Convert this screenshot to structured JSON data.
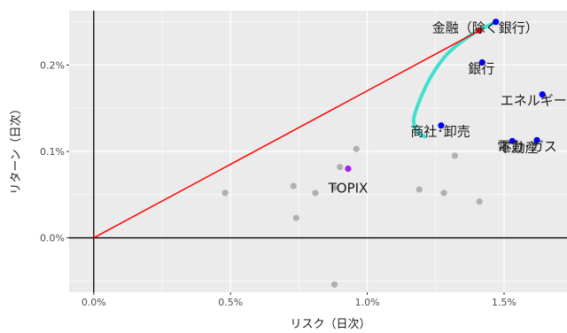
{
  "chart_data": {
    "type": "scatter",
    "xlabel": "リスク（日次）",
    "ylabel": "リターン（日次）",
    "xlim": [
      -0.0009,
      0.0173
    ],
    "ylim": [
      -0.00063,
      0.00263
    ],
    "x_ticks": [
      {
        "value": 0.0,
        "label": "0.0%"
      },
      {
        "value": 0.005,
        "label": "0.5%"
      },
      {
        "value": 0.01,
        "label": "1.0%"
      },
      {
        "value": 0.015,
        "label": "1.5%"
      }
    ],
    "y_ticks": [
      {
        "value": 0.0,
        "label": "0.0%"
      },
      {
        "value": 0.001,
        "label": "0.1%"
      },
      {
        "value": 0.002,
        "label": "0.2%"
      }
    ],
    "grid": true,
    "colors": {
      "panel": "#ebebeb",
      "grid": "#ffffff",
      "axes_lines": "#000000",
      "others": "#b0b0b0",
      "sectors": "#0000ff",
      "topix": "#a020f0",
      "tangent_line": "#ff0000",
      "tangent_point": "#ff0000",
      "frontier": "#40e0d0"
    },
    "gray_points": [
      {
        "x": 0.0048,
        "y": 0.00052
      },
      {
        "x": 0.0073,
        "y": 0.0006
      },
      {
        "x": 0.0074,
        "y": 0.00023
      },
      {
        "x": 0.0081,
        "y": 0.00052
      },
      {
        "x": 0.0088,
        "y": 0.00058
      },
      {
        "x": 0.009,
        "y": 0.00082
      },
      {
        "x": 0.0096,
        "y": 0.00103
      },
      {
        "x": 0.0088,
        "y": -0.00054
      },
      {
        "x": 0.0119,
        "y": 0.00056
      },
      {
        "x": 0.0128,
        "y": 0.00052
      },
      {
        "x": 0.0132,
        "y": 0.00095
      },
      {
        "x": 0.0141,
        "y": 0.00042
      }
    ],
    "labeled_points": [
      {
        "name": "金融（除く銀行）",
        "x": 0.0147,
        "y": 0.0025
      },
      {
        "name": "銀行",
        "x": 0.0142,
        "y": 0.00203
      },
      {
        "name": "エネルギー",
        "x": 0.0164,
        "y": 0.00166
      },
      {
        "name": "商社･卸売",
        "x": 0.0127,
        "y": 0.0013
      },
      {
        "name": "不動産",
        "x": 0.0153,
        "y": 0.00112
      },
      {
        "name": "電力･ガス",
        "x": 0.0162,
        "y": 0.00113
      }
    ],
    "topix": {
      "name": "TOPIX",
      "x": 0.0093,
      "y": 0.0008
    },
    "tangent_point": {
      "x": 0.0141,
      "y": 0.0024
    },
    "tangent_line": [
      {
        "x": 0.0,
        "y": 0.0
      },
      {
        "x": 0.0141,
        "y": 0.0024
      }
    ],
    "frontier": [
      {
        "x": 0.0147,
        "y": 0.0025
      },
      {
        "x": 0.0138,
        "y": 0.00235
      },
      {
        "x": 0.0129,
        "y": 0.00212
      },
      {
        "x": 0.0123,
        "y": 0.00185
      },
      {
        "x": 0.0119,
        "y": 0.00158
      },
      {
        "x": 0.0117,
        "y": 0.00138
      },
      {
        "x": 0.0118,
        "y": 0.00124
      },
      {
        "x": 0.0121,
        "y": 0.00117
      }
    ]
  }
}
